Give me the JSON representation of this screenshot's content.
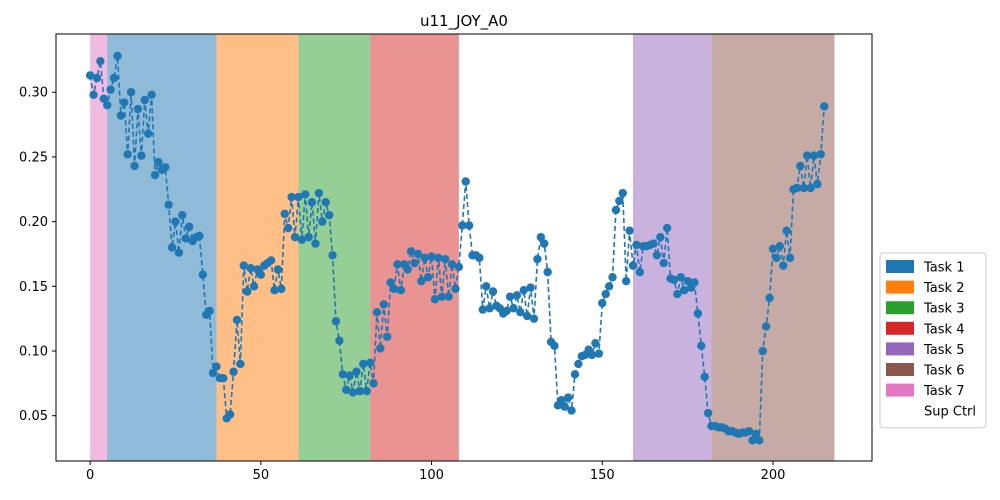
{
  "chart_data": {
    "type": "line",
    "title": "u11_JOY_A0",
    "xlabel": "",
    "ylabel": "",
    "xlim": [
      -10,
      229
    ],
    "ylim": [
      0.015,
      0.345
    ],
    "xticks": [
      0,
      50,
      100,
      150,
      200
    ],
    "yticks": [
      0.05,
      0.1,
      0.15,
      0.2,
      0.25,
      0.3
    ],
    "ytick_labels": [
      "0.05",
      "0.10",
      "0.15",
      "0.20",
      "0.25",
      "0.30"
    ],
    "grid": false,
    "legend_placement": "right",
    "line_color": "#1f77b4",
    "line_style": "dashed with circle markers",
    "legend": [
      {
        "label": "Task 1",
        "color": "#1f77b4"
      },
      {
        "label": "Task 2",
        "color": "#ff7f0e"
      },
      {
        "label": "Task 3",
        "color": "#2ca02c"
      },
      {
        "label": "Task 4",
        "color": "#d62728"
      },
      {
        "label": "Task 5",
        "color": "#9467bd"
      },
      {
        "label": "Task 6",
        "color": "#8c564b"
      },
      {
        "label": "Task 7",
        "color": "#e377c2"
      },
      {
        "label": "Sup Ctrl",
        "color": "#ffffff"
      }
    ],
    "task_bands": [
      {
        "task": "Task 7",
        "x0": 0,
        "x1": 5,
        "color": "#e377c2"
      },
      {
        "task": "Task 1",
        "x0": 5,
        "x1": 37,
        "color": "#1f77b4"
      },
      {
        "task": "Task 2",
        "x0": 37,
        "x1": 61,
        "color": "#ff7f0e"
      },
      {
        "task": "Task 3",
        "x0": 61,
        "x1": 82,
        "color": "#2ca02c"
      },
      {
        "task": "Task 4",
        "x0": 82,
        "x1": 108,
        "color": "#d62728"
      },
      {
        "task": "Task 5",
        "x0": 159,
        "x1": 182,
        "color": "#9467bd"
      },
      {
        "task": "Task 6",
        "x0": 182,
        "x1": 218,
        "color": "#8c564b"
      }
    ],
    "series": [
      {
        "values": [
          0.313,
          0.298,
          0.311,
          0.324,
          0.295,
          0.29,
          0.302,
          0.311,
          0.328,
          0.282,
          0.292,
          0.252,
          0.3,
          0.243,
          0.287,
          0.251,
          0.294,
          0.268,
          0.298,
          0.236,
          0.246,
          0.24,
          0.242,
          0.213,
          0.18,
          0.2,
          0.176,
          0.205,
          0.187,
          0.196,
          0.185,
          0.188,
          0.189,
          0.159,
          0.128,
          0.131,
          0.083,
          0.088,
          0.079,
          0.079,
          0.048,
          0.051,
          0.084,
          0.124,
          0.09,
          0.166,
          0.146,
          0.164,
          0.15,
          0.163,
          0.159,
          0.166,
          0.168,
          0.17,
          0.147,
          0.163,
          0.148,
          0.206,
          0.195,
          0.219,
          0.188,
          0.219,
          0.186,
          0.221,
          0.188,
          0.215,
          0.183,
          0.222,
          0.2,
          0.215,
          0.205,
          0.174,
          0.123,
          0.108,
          0.082,
          0.07,
          0.081,
          0.068,
          0.084,
          0.069,
          0.09,
          0.069,
          0.091,
          0.075,
          0.13,
          0.102,
          0.136,
          0.111,
          0.153,
          0.148,
          0.167,
          0.147,
          0.167,
          0.163,
          0.177,
          0.168,
          0.175,
          0.154,
          0.172,
          0.157,
          0.173,
          0.14,
          0.172,
          0.142,
          0.171,
          0.142,
          0.167,
          0.148,
          0.165,
          0.197,
          0.231,
          0.197,
          0.174,
          0.174,
          0.172,
          0.132,
          0.15,
          0.133,
          0.146,
          0.135,
          0.133,
          0.129,
          0.131,
          0.142,
          0.133,
          0.143,
          0.13,
          0.147,
          0.127,
          0.149,
          0.125,
          0.171,
          0.188,
          0.183,
          0.161,
          0.107,
          0.104,
          0.058,
          0.062,
          0.057,
          0.064,
          0.054,
          0.082,
          0.09,
          0.096,
          0.097,
          0.101,
          0.097,
          0.106,
          0.098,
          0.137,
          0.144,
          0.15,
          0.157,
          0.209,
          0.216,
          0.222,
          0.154,
          0.193,
          0.166,
          0.182,
          0.161,
          0.181,
          0.181,
          0.182,
          0.183,
          0.174,
          0.188,
          0.168,
          0.195,
          0.156,
          0.155,
          0.144,
          0.157,
          0.147,
          0.154,
          0.149,
          0.153,
          0.129,
          0.104,
          0.08,
          0.052,
          0.042,
          0.042,
          0.041,
          0.041,
          0.04,
          0.038,
          0.038,
          0.037,
          0.036,
          0.037,
          0.037,
          0.038,
          0.031,
          0.036,
          0.031,
          0.1,
          0.119,
          0.141,
          0.179,
          0.172,
          0.181,
          0.166,
          0.193,
          0.172,
          0.225,
          0.226,
          0.243,
          0.226,
          0.251,
          0.226,
          0.251,
          0.229,
          0.252,
          0.289
        ]
      }
    ]
  }
}
